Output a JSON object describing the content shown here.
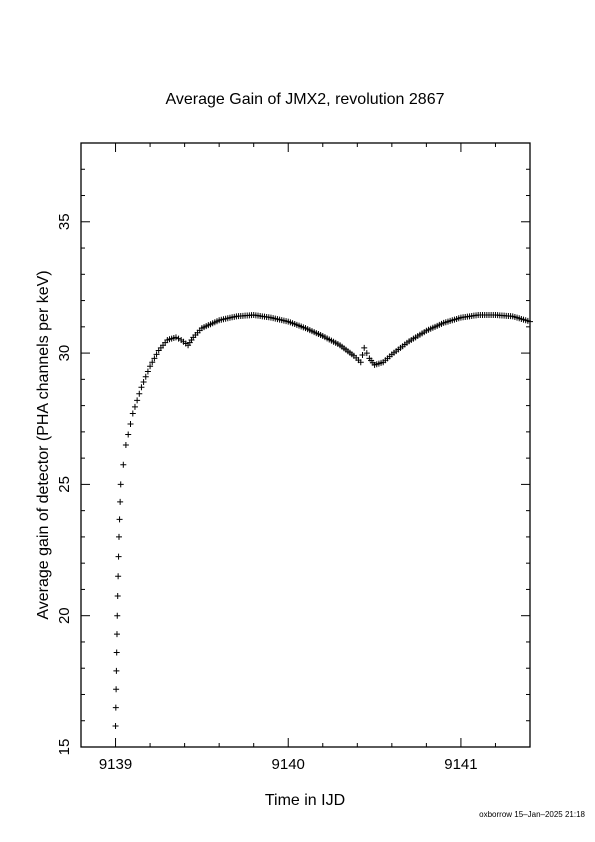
{
  "chart_data": {
    "type": "scatter",
    "marker": "plus",
    "title": "Average Gain of JMX2, revolution 2867",
    "xlabel": "Time in IJD",
    "ylabel": "Average gain of detector (PHA channels per keV)",
    "xlim": [
      9138.8,
      9141.4
    ],
    "ylim": [
      15,
      38
    ],
    "xticks": [
      9139,
      9140,
      9141
    ],
    "yticks": [
      15,
      20,
      25,
      30,
      35
    ],
    "grid": false,
    "x": [
      9139.0,
      9139.01,
      9139.02,
      9139.03,
      9139.06,
      9139.1,
      9139.15,
      9139.2,
      9139.25,
      9139.3,
      9139.35,
      9139.38,
      9139.42,
      9139.45,
      9139.5,
      9139.6,
      9139.7,
      9139.8,
      9139.9,
      9140.0,
      9140.1,
      9140.2,
      9140.3,
      9140.38,
      9140.42,
      9140.44,
      9140.47,
      9140.5,
      9140.55,
      9140.6,
      9140.7,
      9140.8,
      9140.9,
      9141.0,
      9141.1,
      9141.2,
      9141.3,
      9141.4
    ],
    "y": [
      15.8,
      20.0,
      23.0,
      25.0,
      26.5,
      27.7,
      28.7,
      29.5,
      30.1,
      30.5,
      30.6,
      30.5,
      30.3,
      30.6,
      30.95,
      31.25,
      31.4,
      31.45,
      31.35,
      31.2,
      30.95,
      30.65,
      30.3,
      29.9,
      29.65,
      30.2,
      29.8,
      29.55,
      29.65,
      29.95,
      30.45,
      30.85,
      31.15,
      31.35,
      31.45,
      31.45,
      31.4,
      31.2
    ]
  },
  "footer": "oxborrow 15–Jan–2025 21:18"
}
